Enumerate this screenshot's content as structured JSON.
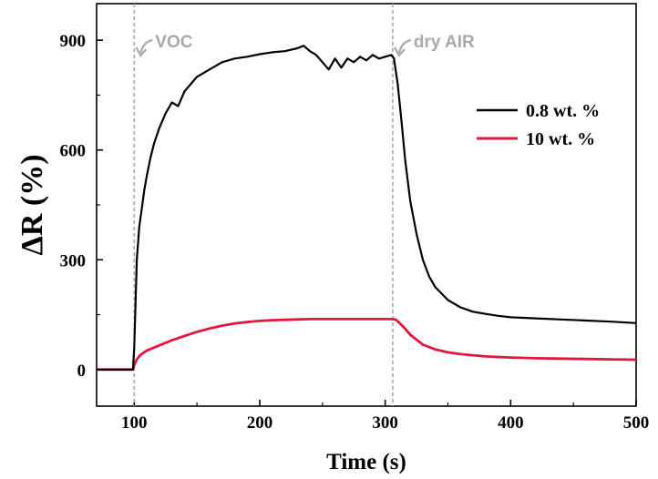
{
  "chart_data": {
    "type": "line",
    "xlabel": "Time (s)",
    "ylabel": "ΔR (%)",
    "xlim": [
      70,
      500
    ],
    "ylim": [
      -100,
      1000
    ],
    "xticks": [
      100,
      200,
      300,
      400,
      500
    ],
    "yticks": [
      0,
      300,
      600,
      900
    ],
    "legend_position": "top-right",
    "grid": false,
    "annotations": [
      {
        "text": "VOC",
        "x": 100
      },
      {
        "text": "dry AIR",
        "x": 306
      }
    ],
    "series": [
      {
        "name": "0.8 wt. %",
        "color": "#000000",
        "x": [
          70,
          99,
          100,
          101,
          102,
          104,
          106,
          108,
          110,
          113,
          116,
          120,
          125,
          130,
          135,
          140,
          150,
          160,
          170,
          180,
          190,
          200,
          210,
          220,
          230,
          235,
          240,
          245,
          250,
          255,
          260,
          265,
          270,
          275,
          280,
          285,
          290,
          295,
          300,
          305,
          307,
          310,
          313,
          316,
          320,
          325,
          330,
          335,
          340,
          350,
          360,
          370,
          380,
          390,
          400,
          420,
          440,
          460,
          480,
          500
        ],
        "values": [
          0,
          0,
          60,
          180,
          300,
          390,
          440,
          490,
          530,
          580,
          620,
          660,
          700,
          730,
          720,
          760,
          800,
          820,
          840,
          850,
          855,
          862,
          867,
          870,
          878,
          885,
          870,
          860,
          840,
          820,
          850,
          825,
          850,
          840,
          855,
          845,
          860,
          850,
          855,
          860,
          850,
          780,
          680,
          570,
          460,
          370,
          300,
          255,
          225,
          190,
          170,
          158,
          152,
          147,
          143,
          140,
          137,
          134,
          131,
          127
        ]
      },
      {
        "name": "10 wt. %",
        "color": "#e0183e",
        "x": [
          70,
          99,
          100,
          102,
          105,
          110,
          120,
          130,
          140,
          150,
          160,
          170,
          180,
          190,
          200,
          210,
          220,
          230,
          240,
          260,
          280,
          300,
          305,
          308,
          310,
          315,
          320,
          330,
          340,
          350,
          360,
          380,
          400,
          420,
          440,
          460,
          480,
          500
        ],
        "values": [
          0,
          0,
          12,
          28,
          40,
          52,
          66,
          80,
          92,
          103,
          112,
          120,
          126,
          130,
          133,
          135,
          136,
          137,
          138,
          138,
          138,
          138,
          138,
          137,
          132,
          115,
          95,
          68,
          55,
          47,
          42,
          36,
          33,
          31,
          30,
          29,
          28,
          27
        ]
      }
    ]
  }
}
